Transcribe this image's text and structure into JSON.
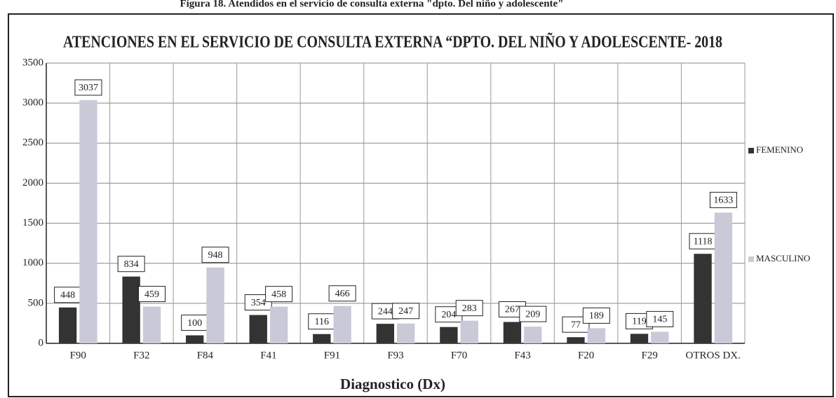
{
  "caption": "Figura 18. Atendidos en el servicio de consulta externa \"dpto. Del niño y adolescente\"",
  "chart_data": {
    "type": "bar",
    "title": "ATENCIONES EN EL SERVICIO DE CONSULTA EXTERNA “DPTO. DEL NIÑO Y ADOLESCENTE- 2018",
    "x_label": "Diagnostico (Dx)",
    "categories": [
      "F90",
      "F32",
      "F84",
      "F41",
      "F91",
      "F93",
      "F70",
      "F43",
      "F20",
      "F29",
      "OTROS DX."
    ],
    "series": [
      {
        "name": "FEMENINO",
        "color": "#333333",
        "values": [
          448,
          834,
          100,
          354,
          116,
          244,
          204,
          267,
          77,
          119,
          1118
        ]
      },
      {
        "name": "MASCULINO",
        "color": "#c9c9d8",
        "values": [
          3037,
          459,
          948,
          458,
          466,
          247,
          283,
          209,
          189,
          145,
          1633
        ]
      }
    ],
    "ylim": [
      0,
      3500
    ],
    "yticks": [
      0,
      500,
      1000,
      1500,
      2000,
      2500,
      3000,
      3500
    ],
    "grid": true,
    "legend": "right"
  }
}
